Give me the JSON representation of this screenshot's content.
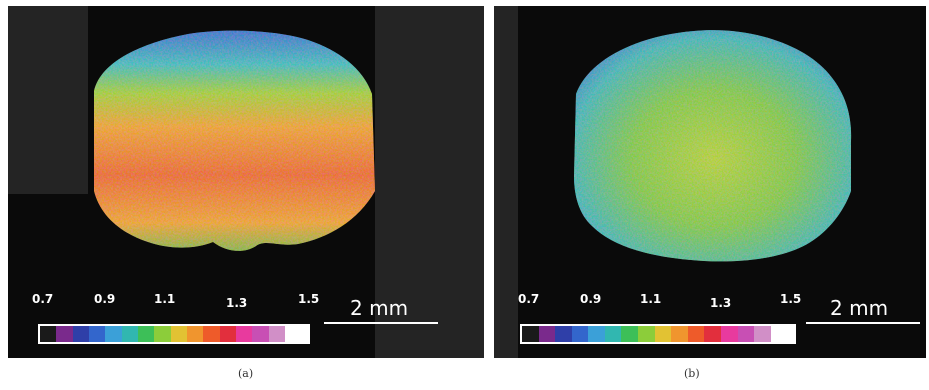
{
  "palette": [
    "#1a1a1a",
    "#7a2a8c",
    "#2f3fa8",
    "#3366cc",
    "#3ba0d8",
    "#31b7b0",
    "#3dbf58",
    "#8ccd3a",
    "#e2c233",
    "#f0952e",
    "#ee5b2a",
    "#e22f3d",
    "#e83a9e",
    "#c84fb4",
    "#d18fc7"
  ],
  "panels": [
    {
      "id": "a",
      "caption": "(a)",
      "ticks": [
        "0.7",
        "0.9",
        "1.1",
        "1.3",
        "1.5"
      ],
      "scale_label": "2 mm"
    },
    {
      "id": "b",
      "caption": "(b)",
      "ticks": [
        "0.7",
        "0.9",
        "1.1",
        "1.3",
        "1.5"
      ],
      "scale_label": "2 mm"
    }
  ]
}
